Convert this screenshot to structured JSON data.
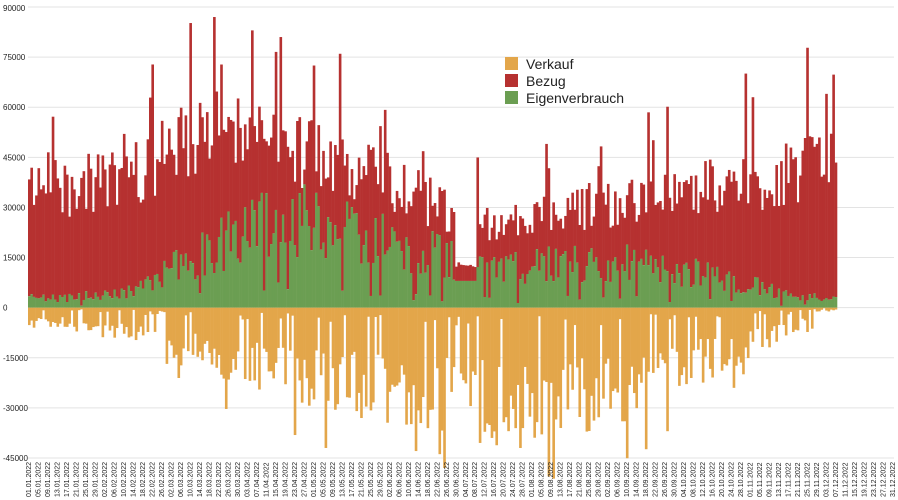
{
  "chart_data": {
    "type": "bar",
    "subtype": "stacked-diverging-daily",
    "title": "",
    "xlabel": "",
    "ylabel": "",
    "ylim": [
      -45000,
      90000
    ],
    "yticks": [
      90000,
      75000,
      60000,
      45000,
      30000,
      15000,
      0,
      -15000,
      -30000,
      -45000
    ],
    "ytick_labels": [
      "90000",
      "75000",
      "60000",
      "45000",
      "30000",
      "15000",
      "0",
      "-15000",
      "-30000",
      "-45000"
    ],
    "grid": true,
    "legend_position": "top-center",
    "colors": {
      "Verkauf": "#e3a64a",
      "Bezug": "#b63130",
      "Eigenverbrauch": "#6b9e52",
      "grid": "#e3e3e3",
      "axis_text": "#222222"
    },
    "legend": [
      "Verkauf",
      "Bezug",
      "Eigenverbrauch"
    ],
    "x_start": "01.01.2022",
    "x_end": "31.12.2022",
    "x_step_days": 1,
    "data_days": 341,
    "total_days": 365,
    "xtick_labels": [
      "01.01.2022",
      "05.01.2022",
      "09.01.2022",
      "13.01.2022",
      "17.01.2022",
      "21.01.2022",
      "25.01.2022",
      "29.01.2022",
      "02.02.2022",
      "06.02.2022",
      "10.02.2022",
      "14.02.2022",
      "18.02.2022",
      "22.02.2022",
      "26.02.2022",
      "02.03.2022",
      "06.03.2022",
      "10.03.2022",
      "14.03.2022",
      "18.03.2022",
      "22.03.2022",
      "26.03.2022",
      "30.03.2022",
      "03.04.2022",
      "07.04.2022",
      "11.04.2022",
      "15.04.2022",
      "19.04.2022",
      "23.04.2022",
      "27.04.2022",
      "01.05.2022",
      "05.05.2022",
      "09.05.2022",
      "13.05.2022",
      "17.05.2022",
      "21.05.2022",
      "25.05.2022",
      "29.05.2022",
      "02.06.2022",
      "06.06.2022",
      "10.06.2022",
      "14.06.2022",
      "18.06.2022",
      "22.06.2022",
      "26.06.2022",
      "30.06.2022",
      "04.07.2022",
      "08.07.2022",
      "12.07.2022",
      "16.07.2022",
      "20.07.2022",
      "24.07.2022",
      "28.07.2022",
      "01.08.2022",
      "05.08.2022",
      "09.08.2022",
      "13.08.2022",
      "17.08.2022",
      "21.08.2022",
      "25.08.2022",
      "29.08.2022",
      "02.09.2022",
      "06.09.2022",
      "10.09.2022",
      "14.09.2022",
      "18.09.2022",
      "22.09.2022",
      "26.09.2022",
      "30.09.2022",
      "04.10.2022",
      "08.10.2022",
      "12.10.2022",
      "16.10.2022",
      "20.10.2022",
      "24.10.2022",
      "28.10.2022",
      "01.11.2022",
      "05.11.2022",
      "09.11.2022",
      "13.11.2022",
      "17.11.2022",
      "21.11.2022",
      "25.11.2022",
      "29.11.2022",
      "03.12.2022",
      "07.12.2022",
      "11.12.2022",
      "15.12.2022",
      "19.12.2022",
      "23.12.2022",
      "27.12.2022",
      "31.12.2022"
    ],
    "series_approx_profile": [
      {
        "name": "Eigenverbrauch",
        "monthly_typical": [
          3000,
          5000,
          17000,
          28000,
          22000,
          17000,
          12000,
          14000,
          13000,
          10000,
          4000,
          1500
        ]
      },
      {
        "name": "Bezug",
        "monthly_typical_top": [
          36000,
          40000,
          55000,
          48000,
          43000,
          33000,
          24000,
          30000,
          32000,
          36000,
          40000,
          45000
        ]
      },
      {
        "name": "Verkauf",
        "monthly_typical": [
          -5000,
          -9000,
          -16000,
          -22000,
          -26000,
          -28000,
          -32000,
          -31000,
          -26000,
          -16000,
          -8000,
          -2000
        ]
      }
    ],
    "peaks": [
      {
        "date": "20.03.2022",
        "series": "Bezug",
        "value": 87000
      },
      {
        "date": "05.04.2022",
        "series": "Bezug",
        "value": 83000
      },
      {
        "date": "12.05.2022",
        "series": "Bezug",
        "value": 76000
      },
      {
        "date": "06.05.2022",
        "series": "Verkauf",
        "value": -42000
      },
      {
        "date": "27.07.2022",
        "series": "Verkauf",
        "value": -42000
      },
      {
        "date": "03.12.2022",
        "series": "Bezug",
        "value": 64000
      }
    ]
  }
}
